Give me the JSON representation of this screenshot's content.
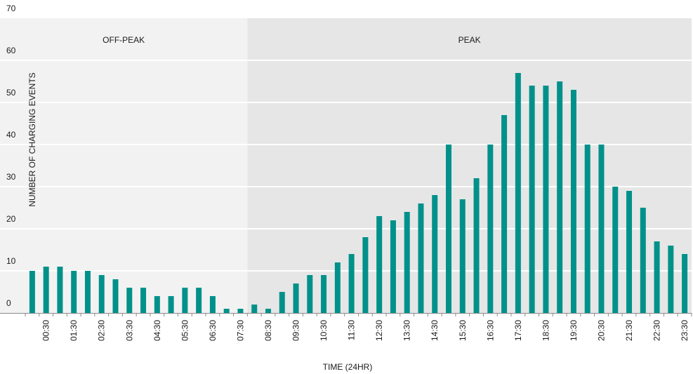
{
  "chart_data": {
    "type": "bar",
    "xlabel": "TIME (24HR)",
    "ylabel": "NUMBER OF CHARGING EVENTS",
    "ylim": [
      0,
      70
    ],
    "yticks": [
      0,
      10,
      20,
      30,
      40,
      50,
      60,
      70
    ],
    "grid": true,
    "bar_color": "#00918a",
    "tick_labels": [
      "00:30",
      "01:30",
      "02:30",
      "03:30",
      "04:30",
      "05:30",
      "06:30",
      "07:30",
      "08:30",
      "09:30",
      "10:30",
      "11:30",
      "12:30",
      "13:30",
      "14:30",
      "15:30",
      "16:30",
      "17:30",
      "18:30",
      "19:30",
      "20:30",
      "21:30",
      "22:30",
      "23:30"
    ],
    "categories": [
      "00:00",
      "00:30",
      "01:00",
      "01:30",
      "02:00",
      "02:30",
      "03:00",
      "03:30",
      "04:00",
      "04:30",
      "05:00",
      "05:30",
      "06:00",
      "06:30",
      "07:00",
      "07:30",
      "08:00",
      "08:30",
      "09:00",
      "09:30",
      "10:00",
      "10:30",
      "11:00",
      "11:30",
      "12:00",
      "12:30",
      "13:00",
      "13:30",
      "14:00",
      "14:30",
      "15:00",
      "15:30",
      "16:00",
      "16:30",
      "17:00",
      "17:30",
      "18:00",
      "18:30",
      "19:00",
      "19:30",
      "20:00",
      "20:30",
      "21:00",
      "21:30",
      "22:00",
      "22:30",
      "23:00",
      "23:30"
    ],
    "values": [
      10,
      11,
      11,
      10,
      10,
      9,
      8,
      6,
      6,
      4,
      4,
      6,
      6,
      4,
      1,
      1,
      2,
      1,
      5,
      7,
      9,
      9,
      12,
      14,
      18,
      23,
      22,
      24,
      26,
      28,
      40,
      27,
      32,
      40,
      47,
      57,
      54,
      54,
      55,
      53,
      40,
      40,
      30,
      29,
      25,
      17,
      16,
      14
    ],
    "regions": [
      {
        "label": "OFF-PEAK",
        "from": "00:00",
        "to": "08:00",
        "color": "#f2f2f2"
      },
      {
        "label": "PEAK",
        "from": "08:00",
        "to": "24:00",
        "color": "#e6e6e6"
      }
    ]
  }
}
